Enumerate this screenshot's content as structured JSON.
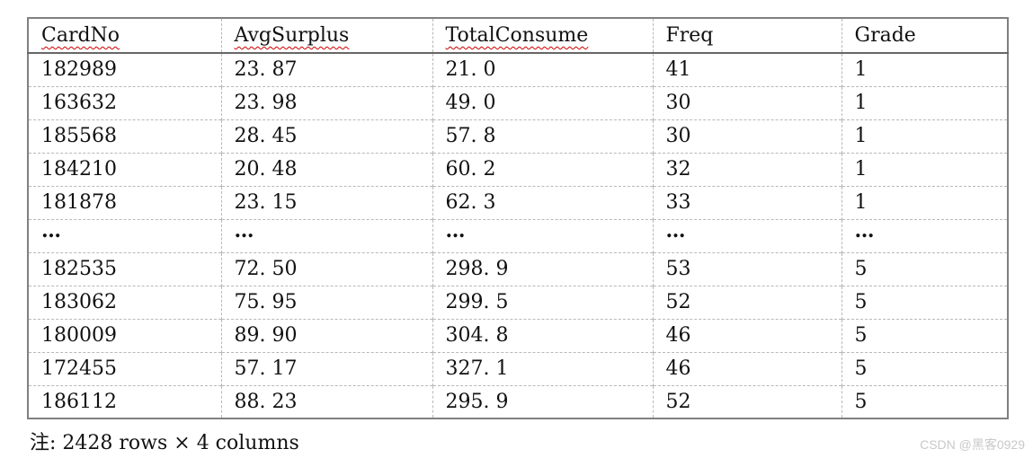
{
  "table": {
    "columns": [
      {
        "label": "CardNo",
        "spellcheck": true
      },
      {
        "label": "AvgSurplus",
        "spellcheck": true
      },
      {
        "label": "TotalConsume",
        "spellcheck": true
      },
      {
        "label": "Freq",
        "spellcheck": false
      },
      {
        "label": "Grade",
        "spellcheck": false
      }
    ],
    "rows": [
      {
        "is_ellipsis": false,
        "cells": [
          "182989",
          "23. 87",
          "21. 0",
          "41",
          "1"
        ]
      },
      {
        "is_ellipsis": false,
        "cells": [
          "163632",
          "23. 98",
          "49. 0",
          "30",
          "1"
        ]
      },
      {
        "is_ellipsis": false,
        "cells": [
          "185568",
          "28. 45",
          "57. 8",
          "30",
          "1"
        ]
      },
      {
        "is_ellipsis": false,
        "cells": [
          "184210",
          "20. 48",
          "60. 2",
          "32",
          "1"
        ]
      },
      {
        "is_ellipsis": false,
        "cells": [
          "181878",
          "23. 15",
          "62. 3",
          "33",
          "1"
        ]
      },
      {
        "is_ellipsis": true,
        "cells": [
          "…",
          "…",
          "…",
          "…",
          "…"
        ]
      },
      {
        "is_ellipsis": false,
        "cells": [
          "182535",
          "72. 50",
          "298. 9",
          "53",
          "5"
        ]
      },
      {
        "is_ellipsis": false,
        "cells": [
          "183062",
          "75. 95",
          "299. 5",
          "52",
          "5"
        ]
      },
      {
        "is_ellipsis": false,
        "cells": [
          "180009",
          "89. 90",
          "304. 8",
          "46",
          "5"
        ]
      },
      {
        "is_ellipsis": false,
        "cells": [
          "172455",
          "57. 17",
          "327. 1",
          "46",
          "5"
        ]
      },
      {
        "is_ellipsis": false,
        "cells": [
          "186112",
          "88. 23",
          "295. 9",
          "52",
          "5"
        ]
      }
    ]
  },
  "footer": {
    "note": "注: 2428 rows × 4 columns"
  },
  "watermark": {
    "text": "CSDN @黑客0929"
  },
  "colors": {
    "text": "#111111",
    "border-outer": "#808080",
    "border-header": "#666666",
    "border-dash": "#b8b8b8",
    "squiggle": "#cc0000",
    "watermark": "#c9c9c9"
  }
}
